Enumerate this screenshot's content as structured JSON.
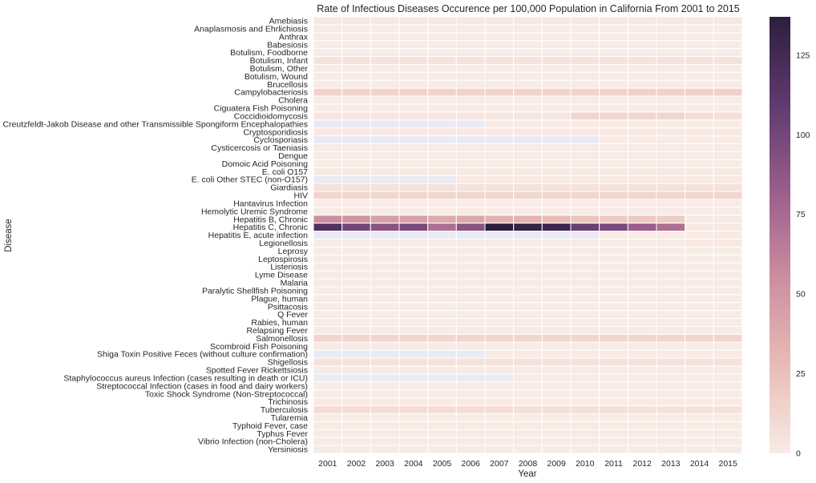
{
  "chart_data": {
    "type": "heatmap",
    "title": "Rate of Infectious Diseases Occurence per 100,000 Population in California From 2001 to 2015",
    "xlabel": "Year",
    "ylabel": "Disease",
    "x": [
      "2001",
      "2002",
      "2003",
      "2004",
      "2005",
      "2006",
      "2007",
      "2008",
      "2009",
      "2010",
      "2011",
      "2012",
      "2013",
      "2014",
      "2015"
    ],
    "y": [
      "Amebiasis",
      "Anaplasmosis and Ehrlichiosis",
      "Anthrax",
      "Babesiosis",
      "Botulism, Foodborne",
      "Botulism, Infant",
      "Botulism, Other",
      "Botulism, Wound",
      "Brucellosis",
      "Campylobacteriosis",
      "Cholera",
      "Ciguatera Fish Poisoning",
      "Coccidioidomycosis",
      "Creutzfeldt-Jakob Disease and other Transmissible Spongiform Encephalopathies",
      "Cryptosporidiosis",
      "Cyclosporiasis",
      "Cysticercosis or Taeniasis",
      "Dengue",
      "Domoic Acid Poisoning",
      "E. coli O157",
      "E. coli Other STEC (non-O157)",
      "Giardiasis",
      "HIV",
      "Hantavirus Infection",
      "Hemolytic Uremic Syndrome",
      "Hepatitis B, Chronic",
      "Hepatitis C, Chronic",
      "Hepatitis E, acute infection",
      "Legionellosis",
      "Leprosy",
      "Leptospirosis",
      "Listeriosis",
      "Lyme Disease",
      "Malaria",
      "Paralytic Shellfish Poisoning",
      "Plague, human",
      "Psittacosis",
      "Q Fever",
      "Rabies, human",
      "Relapsing Fever",
      "Salmonellosis",
      "Scombroid Fish Poisoning",
      "Shiga Toxin Positive Feces (without culture confirmation)",
      "Shigellosis",
      "Spotted Fever Rickettsiosis",
      "Staphylococcus aureus Infection (cases resulting in death or ICU)",
      "Streptococcal Infection (cases in food and dairy workers)",
      "Toxic Shock Syndrome (Non-Streptococcal)",
      "Trichinosis",
      "Tuberculosis",
      "Tularemia",
      "Typhoid Fever, case",
      "Typhus Fever",
      "Vibrio Infection (non-Cholera)",
      "Yersiniosis"
    ],
    "values": [
      [
        2.2,
        2.1,
        2.0,
        2.0,
        1.9,
        1.9,
        1.8,
        1.8,
        1.7,
        1.7,
        1.6,
        1.6,
        1.5,
        1.5,
        1.5
      ],
      [
        0,
        0,
        0,
        0,
        0,
        0,
        0,
        0,
        0,
        0,
        0,
        0,
        0,
        0,
        0
      ],
      [
        0,
        0,
        0,
        0,
        0,
        0,
        0,
        0,
        0,
        0,
        0,
        0,
        0,
        0,
        0
      ],
      [
        0,
        0,
        0,
        0,
        0,
        0,
        0,
        0,
        0,
        0,
        0,
        0,
        0,
        0,
        0
      ],
      [
        0,
        0,
        0,
        0,
        0,
        0,
        0,
        0,
        0,
        0,
        0,
        0,
        0,
        0,
        0
      ],
      [
        5,
        5,
        5,
        5,
        5,
        5,
        5,
        5,
        5,
        5,
        5,
        5,
        5,
        5,
        5
      ],
      [
        0,
        0,
        0,
        0,
        0,
        0,
        0,
        0,
        0,
        0,
        0,
        0,
        0,
        0,
        0
      ],
      [
        0.5,
        0.5,
        0.5,
        0.5,
        0.5,
        0.5,
        0.5,
        0.5,
        0.5,
        0.5,
        0.5,
        0.5,
        0.5,
        0.5,
        0.5
      ],
      [
        0.3,
        0.3,
        0.3,
        0.3,
        0.3,
        0.3,
        0.3,
        0.3,
        0.3,
        0.3,
        0.3,
        0.3,
        0.3,
        0.3,
        0.3
      ],
      [
        14,
        14,
        14,
        14,
        14,
        14,
        14,
        14,
        14,
        14,
        14,
        15,
        15,
        15,
        16
      ],
      [
        0,
        0,
        0,
        0,
        0,
        0,
        0,
        0,
        0,
        0,
        0,
        0,
        0,
        0,
        0
      ],
      [
        0,
        0,
        0,
        0,
        0,
        0,
        0,
        0,
        0,
        0,
        0,
        0,
        0,
        0,
        0
      ],
      [
        3,
        3,
        3,
        3,
        3,
        3,
        3,
        3,
        3,
        13,
        12,
        12,
        12,
        8,
        7
      ],
      [
        null,
        null,
        null,
        null,
        null,
        null,
        0.2,
        0.2,
        0.2,
        0.2,
        0.2,
        0.2,
        0.2,
        0.2,
        0.2
      ],
      [
        1.5,
        1.5,
        1.5,
        1.5,
        1.5,
        1.5,
        1.5,
        1.5,
        1.5,
        1.5,
        1.5,
        1.5,
        1.5,
        1.5,
        1.5
      ],
      [
        null,
        null,
        null,
        null,
        null,
        null,
        null,
        null,
        null,
        null,
        0.3,
        0.3,
        0.3,
        0.3,
        0.3
      ],
      [
        0.5,
        0.5,
        0.5,
        0.5,
        0.5,
        0.5,
        0.5,
        0.5,
        0.5,
        0.5,
        0.5,
        0.5,
        0.5,
        0.5,
        0.5
      ],
      [
        0.5,
        0.5,
        0.5,
        0.5,
        0.5,
        0.5,
        0.5,
        0.5,
        0.5,
        0.5,
        0.5,
        0.5,
        0.5,
        0.5,
        0.5
      ],
      [
        0,
        0,
        0,
        0,
        0,
        0,
        0,
        0,
        0,
        0,
        0,
        0,
        0,
        0,
        0
      ],
      [
        1.5,
        1.5,
        1.5,
        1.5,
        1.5,
        1.5,
        1.5,
        1.5,
        1.5,
        1.5,
        1.5,
        1.5,
        1.5,
        1.5,
        1.5
      ],
      [
        null,
        null,
        null,
        null,
        null,
        1.0,
        1.0,
        1.0,
        1.0,
        1.0,
        1.0,
        1.0,
        1.0,
        1.0,
        1.0
      ],
      [
        6,
        6,
        6,
        6,
        6,
        6,
        6,
        6,
        6,
        6,
        6,
        6,
        6,
        6,
        6
      ],
      [
        12,
        12,
        12,
        12,
        12,
        12,
        12,
        12,
        12,
        12,
        12,
        12,
        12,
        12,
        12
      ],
      [
        0,
        0,
        0,
        0,
        0,
        0,
        0,
        0,
        0,
        0,
        0,
        0,
        0,
        0,
        0
      ],
      [
        0,
        0,
        0,
        0,
        0,
        0,
        0,
        0,
        0,
        0,
        0,
        0,
        0,
        0,
        0
      ],
      [
        55,
        52,
        45,
        44,
        38,
        40,
        33,
        32,
        28,
        23,
        20,
        20,
        18,
        1,
        1
      ],
      [
        118,
        100,
        90,
        98,
        72,
        90,
        137,
        132,
        128,
        105,
        98,
        82,
        72,
        2,
        2
      ],
      [
        null,
        null,
        null,
        null,
        null,
        null,
        null,
        null,
        null,
        null,
        0.1,
        0.1,
        0.1,
        0.2,
        0.3
      ],
      [
        0.5,
        0.5,
        0.5,
        0.5,
        0.5,
        0.5,
        0.5,
        0.5,
        0.5,
        0.5,
        0.5,
        0.5,
        0.5,
        1.5,
        1.5
      ],
      [
        0,
        0,
        0,
        0,
        0,
        0,
        0,
        0,
        0,
        0,
        0,
        0,
        0,
        0,
        0
      ],
      [
        0,
        0,
        0,
        0,
        0,
        0,
        0,
        0,
        0,
        0,
        0,
        0,
        0,
        0,
        0
      ],
      [
        0.5,
        0.5,
        0.5,
        0.5,
        0.5,
        0.5,
        0.5,
        0.5,
        0.5,
        0.5,
        0.5,
        0.5,
        0.5,
        0.5,
        0.5
      ],
      [
        0.3,
        0.3,
        0.3,
        0.3,
        0.3,
        0.3,
        0.3,
        0.3,
        0.3,
        0.3,
        0.3,
        0.3,
        0.3,
        0.3,
        0.3
      ],
      [
        0.8,
        0.8,
        0.8,
        0.8,
        0.8,
        0.8,
        0.8,
        0.8,
        0.8,
        0.8,
        0.8,
        0.8,
        0.8,
        0.8,
        0.8
      ],
      [
        0,
        0,
        0,
        0,
        0,
        0,
        0,
        0,
        0,
        0,
        0,
        0,
        0,
        0,
        0
      ],
      [
        0,
        0,
        0,
        0,
        0,
        0,
        0,
        0,
        0,
        0,
        0,
        0,
        0,
        0,
        0
      ],
      [
        0,
        0,
        0,
        0,
        0,
        0,
        0,
        0,
        0,
        0,
        0,
        0,
        0,
        0,
        0
      ],
      [
        0,
        0,
        0,
        0,
        0,
        0,
        0,
        0,
        0,
        0,
        0,
        0,
        0,
        0,
        0
      ],
      [
        0,
        0,
        0,
        0,
        0,
        0,
        0,
        0,
        0,
        0,
        0,
        0,
        0,
        0,
        0
      ],
      [
        0,
        0,
        0,
        0,
        0,
        0,
        0,
        0,
        0,
        0,
        0,
        0,
        0,
        0,
        0
      ],
      [
        12,
        12,
        12,
        12,
        12,
        12,
        12,
        12,
        12,
        12,
        12,
        12,
        12,
        12,
        13
      ],
      [
        0.5,
        0.5,
        0.5,
        0.5,
        0.5,
        0.5,
        0.5,
        0.5,
        0.5,
        0.5,
        0.5,
        0.5,
        0.5,
        0.5,
        0.5
      ],
      [
        null,
        null,
        null,
        null,
        null,
        null,
        0.3,
        0.3,
        0.3,
        0.3,
        0.3,
        0.3,
        0.3,
        0.3,
        0.3
      ],
      [
        6,
        6,
        6,
        6,
        6,
        6,
        6,
        6,
        6,
        6,
        6,
        6,
        6,
        6,
        6
      ],
      [
        0.3,
        0.3,
        0.3,
        0.3,
        0.3,
        0.3,
        0.3,
        0.3,
        0.3,
        0.3,
        0.3,
        0.3,
        0.3,
        0.3,
        0.3
      ],
      [
        null,
        null,
        null,
        null,
        null,
        null,
        null,
        0.5,
        0.5,
        0.5,
        0.5,
        0.5,
        0.5,
        0.5,
        0.5
      ],
      [
        0,
        0,
        0,
        0,
        0,
        0,
        0,
        0,
        0,
        0,
        0,
        0,
        0,
        0,
        0
      ],
      [
        0,
        0,
        0,
        0,
        0,
        0,
        0,
        0,
        0,
        0,
        0,
        0,
        0,
        0,
        0
      ],
      [
        0,
        0,
        0,
        0,
        0,
        0,
        0,
        0,
        0,
        0,
        0,
        0,
        0,
        0,
        0
      ],
      [
        8,
        8,
        8,
        8,
        8,
        8,
        8,
        7,
        7,
        7,
        7,
        6,
        6,
        6,
        6
      ],
      [
        0,
        0,
        0,
        0,
        0,
        0,
        0,
        0,
        0,
        0,
        0,
        0,
        0,
        0,
        0
      ],
      [
        0.3,
        0.3,
        0.3,
        0.3,
        0.3,
        0.3,
        0.3,
        0.3,
        0.3,
        0.3,
        0.3,
        0.3,
        0.3,
        0.3,
        0.3
      ],
      [
        0.5,
        0.5,
        0.5,
        0.5,
        0.5,
        0.5,
        0.5,
        0.5,
        0.5,
        0.5,
        0.5,
        0.5,
        0.5,
        0.5,
        0.5
      ],
      [
        0.8,
        0.8,
        0.8,
        0.8,
        0.8,
        0.8,
        0.8,
        0.8,
        0.8,
        0.8,
        0.8,
        0.8,
        0.8,
        0.8,
        0.8
      ],
      [
        0.3,
        0.3,
        0.3,
        0.3,
        0.3,
        0.3,
        0.3,
        0.3,
        0.3,
        0.3,
        0.3,
        0.3,
        0.3,
        0.3,
        0.3
      ]
    ],
    "vmin": 0,
    "vmax": 137,
    "colorbar_ticks": [
      0,
      25,
      50,
      75,
      100,
      125
    ],
    "colormap": [
      "#f8ebe5",
      "#e9bcb6",
      "#cc8ea0",
      "#9a5e8b",
      "#5f3a6f",
      "#2d1e3e"
    ],
    "missing_color": "#eaeaf2",
    "grid": false
  }
}
